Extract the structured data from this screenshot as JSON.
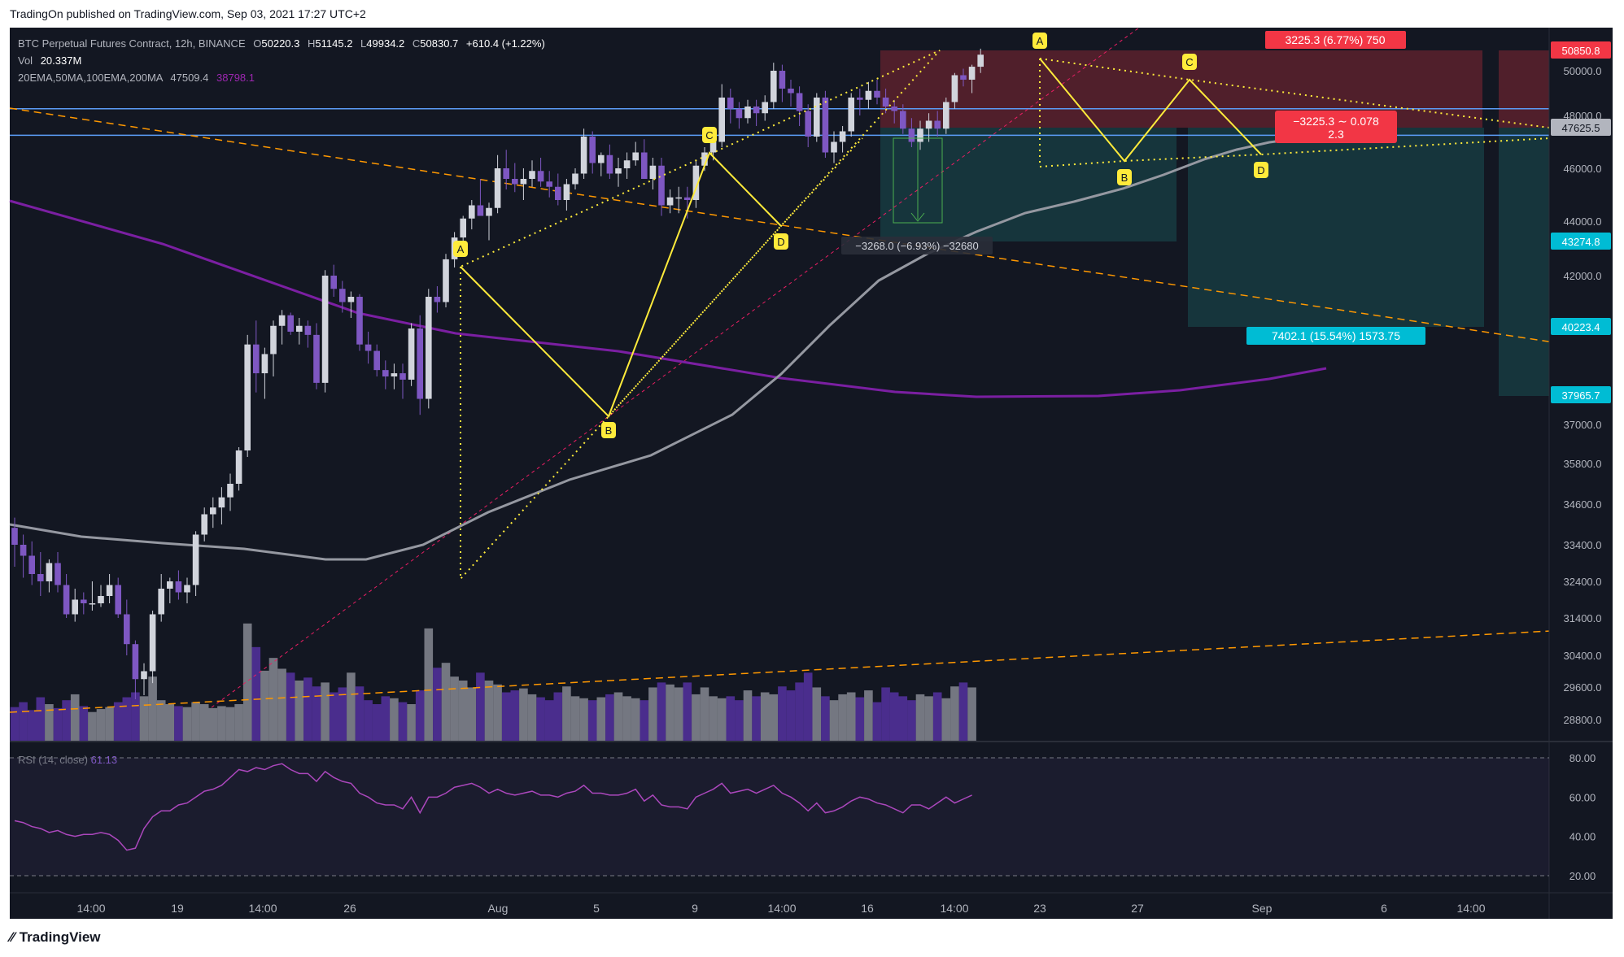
{
  "header": {
    "published": "TradingOn published on TradingView.com, Sep 03, 2021 17:27 UTC+2"
  },
  "footer": {
    "brand": "TradingView",
    "brand_icon": "tradingview-logo-icon"
  },
  "legend": {
    "symbol": "BTC Perpetual Futures Contract, 12h, BINANCE",
    "o_label": "O",
    "o": "50220.3",
    "h_label": "H",
    "h": "51145.2",
    "l_label": "L",
    "l": "49934.2",
    "c_label": "C",
    "c": "50830.7",
    "change": "+610.4 (+1.22%)",
    "vol_label": "Vol",
    "vol": "20.337M",
    "ma_label": "20EMA,50MA,100EMA,200MA",
    "ma1": "47509.4",
    "ma2": "38798.1"
  },
  "rsi": {
    "label": "RSI (14, close)",
    "value": "61.13"
  },
  "price_axis": {
    "ticks": [
      "50000.0",
      "48000.0",
      "46000.0",
      "44000.0",
      "42000.0",
      "40000.0",
      "37000.0",
      "35800.0",
      "34600.0",
      "33400.0",
      "32400.0",
      "31400.0",
      "30400.0",
      "29600.0",
      "28800.0"
    ],
    "badges": [
      {
        "text": "50850.8",
        "color": "#f23645"
      },
      {
        "text": "47625.5",
        "color": "#b2b5be"
      },
      {
        "text": "43274.8",
        "color": "#00bcd4"
      },
      {
        "text": "40223.4",
        "color": "#00bcd4"
      },
      {
        "text": "37965.7",
        "color": "#00bcd4"
      }
    ]
  },
  "rsi_axis": {
    "ticks": [
      "80.00",
      "60.00",
      "40.00",
      "20.00"
    ]
  },
  "time_axis": {
    "ticks": [
      "14:00",
      "19",
      "14:00",
      "26",
      "Aug",
      "5",
      "9",
      "14:00",
      "16",
      "14:00",
      "23",
      "27",
      "Sep",
      "6",
      "14:00"
    ]
  },
  "annotations": {
    "measure_short": "−3268.0 (−6.93%) −32680",
    "target_up": "3225.3 (6.77%) 750",
    "risk_reward": "−3225.3 ∼ 0.078",
    "risk_reward_2": "2.3",
    "target_down": "7402.1 (15.54%) 1573.75",
    "pattern1": [
      "A",
      "B",
      "C",
      "D"
    ],
    "pattern2": [
      "A",
      "B",
      "C",
      "D"
    ]
  },
  "colors": {
    "background": "#131722",
    "up": "#d1d4dc",
    "down": "#7e57c2",
    "ma_purple": "#7b1fa2",
    "ma_gray": "#9598a1",
    "trend": "#ff9800",
    "pattern": "#ffeb3b",
    "hline": "#5b9cf6",
    "red_zone": "#f23645",
    "teal_zone": "#26a69a"
  },
  "chart_data": {
    "type": "candlestick",
    "title": "BTC Perpetual Futures Contract, 12h, BINANCE",
    "xlabel": "",
    "ylabel": "",
    "ylim": [
      28000,
      51500
    ],
    "grid": false,
    "legend_placement": "top-left",
    "ohlc": [
      [
        33900,
        34200,
        32800,
        33400
      ],
      [
        33400,
        33700,
        32500,
        33100
      ],
      [
        33100,
        33500,
        32300,
        32600
      ],
      [
        32600,
        33200,
        32000,
        32400
      ],
      [
        32400,
        33000,
        32100,
        32900
      ],
      [
        32900,
        33200,
        32100,
        32300
      ],
      [
        32300,
        32600,
        31400,
        31500
      ],
      [
        31500,
        32200,
        31300,
        31900
      ],
      [
        31900,
        32100,
        31500,
        31800
      ],
      [
        31800,
        32400,
        31600,
        31800
      ],
      [
        31800,
        32300,
        31700,
        32000
      ],
      [
        32000,
        32600,
        31800,
        32300
      ],
      [
        32300,
        32500,
        31400,
        31500
      ],
      [
        31500,
        31900,
        30400,
        30700
      ],
      [
        30700,
        30800,
        29300,
        29800
      ],
      [
        29800,
        30200,
        29400,
        30000
      ],
      [
        30000,
        31600,
        29700,
        31500
      ],
      [
        31500,
        32600,
        31300,
        32200
      ],
      [
        32200,
        32500,
        31800,
        32400
      ],
      [
        32400,
        32700,
        31900,
        32100
      ],
      [
        32100,
        32500,
        31800,
        32300
      ],
      [
        32300,
        33800,
        32000,
        33700
      ],
      [
        33700,
        34500,
        33500,
        34300
      ],
      [
        34300,
        34800,
        33900,
        34500
      ],
      [
        34500,
        35100,
        34000,
        34800
      ],
      [
        34800,
        35500,
        34400,
        35200
      ],
      [
        35200,
        36300,
        35000,
        36200
      ],
      [
        36200,
        39800,
        36000,
        39500
      ],
      [
        39500,
        40300,
        38000,
        38600
      ],
      [
        38600,
        39400,
        37800,
        39200
      ],
      [
        39200,
        40300,
        38500,
        40100
      ],
      [
        40100,
        40700,
        39500,
        40500
      ],
      [
        40500,
        40600,
        39800,
        39900
      ],
      [
        39900,
        40400,
        39500,
        40100
      ],
      [
        40100,
        40300,
        39400,
        39800
      ],
      [
        39800,
        40200,
        38100,
        38300
      ],
      [
        38300,
        42200,
        38000,
        42000
      ],
      [
        42000,
        42400,
        41200,
        41500
      ],
      [
        41500,
        41800,
        40600,
        41000
      ],
      [
        41000,
        41400,
        40400,
        41200
      ],
      [
        41200,
        41300,
        39300,
        39500
      ],
      [
        39500,
        39900,
        38900,
        39300
      ],
      [
        39300,
        39500,
        38500,
        38700
      ],
      [
        38700,
        39000,
        38100,
        38500
      ],
      [
        38500,
        38900,
        38100,
        38600
      ],
      [
        38600,
        38900,
        37800,
        38400
      ],
      [
        38400,
        40200,
        38200,
        40000
      ],
      [
        40000,
        40500,
        37300,
        37800
      ],
      [
        37800,
        41500,
        37500,
        41200
      ],
      [
        41200,
        41600,
        40600,
        41000
      ],
      [
        41000,
        42800,
        40800,
        42600
      ],
      [
        42600,
        43600,
        42300,
        43400
      ],
      [
        43400,
        44200,
        43000,
        44100
      ],
      [
        44100,
        44800,
        43700,
        44600
      ],
      [
        44600,
        45600,
        44200,
        44200
      ],
      [
        44200,
        44700,
        43300,
        44500
      ],
      [
        44500,
        46500,
        44300,
        46000
      ],
      [
        46000,
        46700,
        45200,
        45600
      ],
      [
        45600,
        46200,
        45100,
        45400
      ],
      [
        45400,
        46000,
        44800,
        45600
      ],
      [
        45600,
        46300,
        45300,
        45900
      ],
      [
        45900,
        46400,
        45300,
        45500
      ],
      [
        45500,
        45900,
        44900,
        45300
      ],
      [
        45300,
        45800,
        44600,
        44800
      ],
      [
        44800,
        45600,
        44400,
        45400
      ],
      [
        45400,
        46000,
        45200,
        45800
      ],
      [
        45800,
        47500,
        45600,
        47200
      ],
      [
        47200,
        47400,
        45800,
        46200
      ],
      [
        46200,
        46600,
        45700,
        46500
      ],
      [
        46500,
        46900,
        45600,
        45800
      ],
      [
        45800,
        46400,
        45300,
        46000
      ],
      [
        46000,
        46600,
        45600,
        46300
      ],
      [
        46300,
        47000,
        46100,
        46600
      ],
      [
        46600,
        47100,
        45700,
        45600
      ],
      [
        45600,
        46400,
        45200,
        46100
      ],
      [
        46100,
        46400,
        44200,
        44600
      ],
      [
        44600,
        45200,
        44300,
        44900
      ],
      [
        44900,
        45300,
        44300,
        44900
      ],
      [
        44900,
        45300,
        44100,
        44800
      ],
      [
        44800,
        46300,
        44500,
        46100
      ],
      [
        46100,
        46800,
        45900,
        46600
      ],
      [
        46600,
        47400,
        46300,
        47000
      ],
      [
        47000,
        49400,
        46800,
        48800
      ],
      [
        48800,
        49200,
        47700,
        48300
      ],
      [
        48300,
        48600,
        47500,
        47900
      ],
      [
        47900,
        48700,
        47700,
        48400
      ],
      [
        48400,
        48700,
        47600,
        48100
      ],
      [
        48100,
        48900,
        47800,
        48600
      ],
      [
        48600,
        50400,
        48300,
        50000
      ],
      [
        50000,
        50300,
        48600,
        49200
      ],
      [
        49200,
        49600,
        48400,
        49000
      ],
      [
        49000,
        49300,
        47600,
        48200
      ],
      [
        48200,
        48500,
        46800,
        47200
      ],
      [
        47200,
        49000,
        47000,
        48800
      ],
      [
        48800,
        49100,
        46400,
        46600
      ],
      [
        46600,
        47400,
        46200,
        47000
      ],
      [
        47000,
        47600,
        46600,
        47400
      ],
      [
        47400,
        49000,
        47200,
        48800
      ],
      [
        48800,
        49200,
        48000,
        48700
      ],
      [
        48700,
        49500,
        48300,
        49100
      ],
      [
        49100,
        49600,
        48500,
        48800
      ],
      [
        48800,
        49200,
        48100,
        48400
      ],
      [
        48400,
        48700,
        47700,
        48200
      ],
      [
        48200,
        48500,
        47300,
        47500
      ],
      [
        47500,
        47900,
        46800,
        47000
      ],
      [
        47000,
        47800,
        46700,
        47500
      ],
      [
        47500,
        48100,
        47000,
        47800
      ],
      [
        47800,
        48200,
        47200,
        47500
      ],
      [
        47500,
        48800,
        47300,
        48600
      ],
      [
        48600,
        49900,
        48300,
        49800
      ],
      [
        49800,
        50100,
        49300,
        49600
      ],
      [
        49600,
        50300,
        49000,
        50200
      ],
      [
        50200,
        51100,
        49900,
        50800
      ]
    ],
    "horizontal_levels": [
      48300,
      47250
    ],
    "rsi": [
      48,
      47,
      45,
      44,
      42,
      43,
      41,
      40,
      41,
      41,
      42,
      41,
      38,
      33,
      34,
      44,
      50,
      53,
      53,
      56,
      57,
      60,
      63,
      64,
      66,
      70,
      74,
      73,
      75,
      74,
      76,
      77,
      74,
      72,
      72,
      68,
      73,
      70,
      68,
      67,
      62,
      60,
      57,
      56,
      56,
      54,
      60,
      52,
      60,
      60,
      62,
      65,
      66,
      67,
      65,
      62,
      64,
      62,
      61,
      62,
      63,
      61,
      61,
      60,
      62,
      63,
      66,
      62,
      62,
      61,
      61,
      62,
      64,
      58,
      61,
      56,
      55,
      55,
      54,
      60,
      62,
      64,
      67,
      62,
      63,
      64,
      62,
      64,
      66,
      62,
      60,
      57,
      53,
      57,
      52,
      53,
      55,
      58,
      60,
      59,
      57,
      56,
      54,
      52,
      56,
      56,
      54,
      57,
      60,
      57,
      59,
      61
    ],
    "volume_relative": [
      0.35,
      0.4,
      0.32,
      0.45,
      0.38,
      0.34,
      0.42,
      0.48,
      0.36,
      0.3,
      0.33,
      0.35,
      0.4,
      0.45,
      0.5,
      0.46,
      0.66,
      0.42,
      0.38,
      0.36,
      0.35,
      0.4,
      0.38,
      0.34,
      0.36,
      0.35,
      0.38,
      1.2,
      0.96,
      0.72,
      0.85,
      0.74,
      0.7,
      0.62,
      0.65,
      0.56,
      0.6,
      0.5,
      0.55,
      0.7,
      0.56,
      0.42,
      0.38,
      0.46,
      0.44,
      0.4,
      0.38,
      0.52,
      1.15,
      0.75,
      0.8,
      0.66,
      0.62,
      0.55,
      0.7,
      0.62,
      0.58,
      0.5,
      0.52,
      0.54,
      0.48,
      0.45,
      0.42,
      0.5,
      0.56,
      0.46,
      0.44,
      0.42,
      0.45,
      0.48,
      0.5,
      0.46,
      0.44,
      0.42,
      0.55,
      0.6,
      0.58,
      0.55,
      0.6,
      0.48,
      0.55,
      0.46,
      0.44,
      0.46,
      0.42,
      0.52,
      0.46,
      0.5,
      0.48,
      0.56,
      0.52,
      0.6,
      0.7,
      0.55,
      0.46,
      0.42,
      0.48,
      0.5,
      0.45,
      0.52,
      0.4,
      0.55,
      0.5,
      0.46,
      0.42,
      0.48,
      0.46,
      0.5,
      0.44,
      0.56,
      0.6,
      0.55
    ]
  }
}
